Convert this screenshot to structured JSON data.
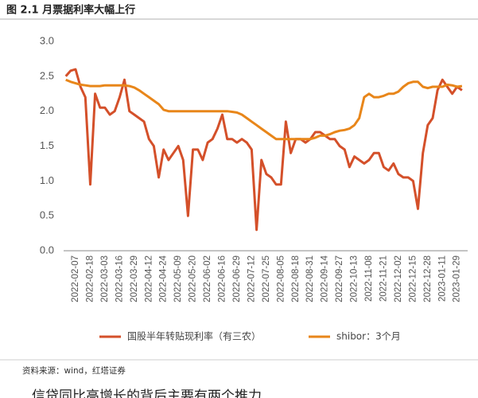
{
  "figure_title": "图 2.1 月票据利率大幅上行",
  "source": "资料来源：wind，红塔证券",
  "body_text": "信贷同比高增长的背后主要有两个推力",
  "chart_data": {
    "type": "line",
    "categories": [
      null,
      null,
      "2022-02-07",
      null,
      null,
      "2022-02-18",
      null,
      null,
      "2022-03-03",
      null,
      null,
      "2022-03-16",
      null,
      null,
      "2022-03-29",
      null,
      null,
      "2022-04-12",
      null,
      null,
      "2022-04-24",
      null,
      null,
      "2022-05-09",
      null,
      null,
      "2022-05-20",
      null,
      null,
      "2022-06-02",
      null,
      null,
      "2022-06-16",
      null,
      null,
      "2022-06-29",
      null,
      null,
      "2022-07-12",
      null,
      null,
      "2022-07-25",
      null,
      null,
      "2022-08-05",
      null,
      null,
      "2022-08-18",
      null,
      null,
      "2022-08-31",
      null,
      null,
      "2022-09-14",
      null,
      null,
      "2022-09-27",
      null,
      null,
      "2022-10-13",
      null,
      null,
      "2022-11-08",
      null,
      null,
      "2022-11-21",
      null,
      null,
      "2022-12-02",
      null,
      null,
      "2022-12-15",
      null,
      null,
      "2022-12-28",
      null,
      null,
      "2023-01-11",
      null,
      null,
      "2023-01-29",
      null
    ],
    "series": [
      {
        "name": "国股半年转贴现利率（有三农）",
        "color": "#d4502a",
        "values": [
          2.5,
          2.58,
          2.6,
          2.35,
          2.2,
          0.95,
          2.25,
          2.05,
          2.05,
          1.95,
          2.0,
          2.2,
          2.45,
          2.0,
          1.95,
          1.9,
          1.85,
          1.6,
          1.5,
          1.05,
          1.45,
          1.3,
          1.4,
          1.5,
          1.3,
          0.5,
          1.45,
          1.45,
          1.3,
          1.55,
          1.6,
          1.75,
          1.95,
          1.6,
          1.6,
          1.55,
          1.6,
          1.55,
          1.45,
          0.3,
          1.3,
          1.1,
          1.05,
          0.95,
          0.95,
          1.85,
          1.4,
          1.6,
          1.6,
          1.55,
          1.6,
          1.7,
          1.7,
          1.65,
          1.6,
          1.6,
          1.5,
          1.45,
          1.2,
          1.35,
          1.3,
          1.25,
          1.3,
          1.4,
          1.4,
          1.2,
          1.15,
          1.25,
          1.1,
          1.05,
          1.05,
          1.0,
          0.6,
          1.4,
          1.8,
          1.9,
          2.3,
          2.45,
          2.35,
          2.25,
          2.35,
          2.3
        ]
      },
      {
        "name": "shibor：3个月",
        "color": "#e8861a",
        "values": [
          2.45,
          2.42,
          2.4,
          2.38,
          2.37,
          2.36,
          2.36,
          2.36,
          2.37,
          2.37,
          2.37,
          2.37,
          2.37,
          2.36,
          2.34,
          2.3,
          2.25,
          2.2,
          2.15,
          2.1,
          2.02,
          2.0,
          2.0,
          2.0,
          2.0,
          2.0,
          2.0,
          2.0,
          2.0,
          2.0,
          2.0,
          2.0,
          2.0,
          2.0,
          1.99,
          1.98,
          1.95,
          1.9,
          1.85,
          1.8,
          1.75,
          1.7,
          1.65,
          1.6,
          1.6,
          1.6,
          1.6,
          1.6,
          1.6,
          1.6,
          1.6,
          1.62,
          1.65,
          1.65,
          1.67,
          1.7,
          1.72,
          1.73,
          1.75,
          1.8,
          1.9,
          2.2,
          2.25,
          2.2,
          2.2,
          2.22,
          2.25,
          2.25,
          2.28,
          2.35,
          2.4,
          2.42,
          2.42,
          2.35,
          2.33,
          2.35,
          2.35,
          2.35,
          2.38,
          2.37,
          2.35,
          2.36
        ]
      }
    ],
    "ylim": [
      0,
      3
    ],
    "yticks": [
      {
        "value": 0,
        "label": "0.0"
      },
      0.5,
      {
        "value": 1,
        "label": "1.0"
      },
      1.5,
      {
        "value": 2,
        "label": "2.0"
      },
      2.5,
      {
        "value": 3,
        "label": "3.0"
      }
    ],
    "grid": false,
    "legend": "bottom"
  }
}
